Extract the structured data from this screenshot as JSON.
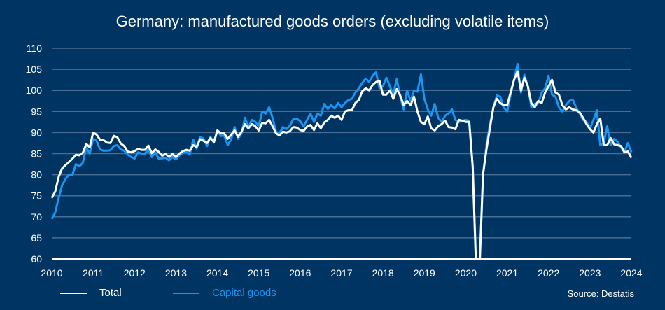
{
  "chart_data": {
    "type": "line",
    "title": "Germany: manufactured goods orders (excluding volatile items)",
    "xlabel": "",
    "ylabel": "",
    "ylim": [
      60,
      110
    ],
    "yticks": [
      "60",
      "65",
      "70",
      "75",
      "80",
      "85",
      "90",
      "95",
      "100",
      "105",
      "110"
    ],
    "xlim": [
      2010,
      2024
    ],
    "xticks": [
      "2010",
      "2011",
      "2012",
      "2013",
      "2014",
      "2015",
      "2016",
      "2017",
      "2018",
      "2019",
      "2020",
      "2021",
      "2022",
      "2023",
      "2024"
    ],
    "grid": true,
    "legend_position": "bottom-left",
    "x_start": "2010-01",
    "x_frequency": "monthly",
    "series": [
      {
        "name": "Total",
        "color": "#ffffff",
        "values": [
          74.5,
          76,
          79.5,
          81.5,
          82.3,
          83,
          83.8,
          84.7,
          84.6,
          85.2,
          87.3,
          86.5,
          90,
          89.5,
          88.3,
          88.2,
          87.6,
          87.5,
          89.2,
          88.9,
          87.4,
          86.8,
          85.5,
          85.3,
          85.6,
          86.1,
          85.9,
          85.9,
          86.9,
          85.1,
          86,
          85.4,
          84.5,
          84.9,
          84.2,
          84.9,
          84.2,
          85,
          85.6,
          85.9,
          85.7,
          87,
          86.6,
          88.4,
          88,
          87.5,
          88.7,
          87.7,
          90.5,
          89.8,
          89.8,
          88.5,
          89.5,
          90.5,
          89,
          90.2,
          92,
          91,
          92,
          91.5,
          90.5,
          92.3,
          92.2,
          93,
          91.5,
          89.8,
          89.3,
          90.2,
          90,
          90.3,
          91.3,
          91.2,
          90.6,
          90.4,
          91.4,
          91.8,
          90.6,
          92.2,
          91,
          92.4,
          93,
          94,
          93.5,
          94,
          93,
          95,
          95.3,
          95.3,
          97,
          97.7,
          99.8,
          100.5,
          100,
          101.3,
          102,
          102.3,
          99,
          99,
          100,
          98,
          100.3,
          98.8,
          96.5,
          97.5,
          96.5,
          98.5,
          95,
          92.5,
          92,
          93.8,
          91,
          90.5,
          91.5,
          92,
          92.8,
          91.3,
          91.2,
          90.8,
          93,
          92.8,
          92.5,
          92.5,
          82,
          58,
          58,
          80,
          86,
          91,
          96,
          98,
          97,
          96.5,
          96.5,
          99.5,
          102.5,
          104.5,
          100,
          103,
          101,
          97,
          96,
          97.5,
          97,
          99.5,
          101,
          102.5,
          99.5,
          99,
          96.5,
          95.5,
          96,
          95.5,
          95.3,
          94.8,
          93.5,
          92,
          90.8,
          90,
          92,
          93.3,
          87,
          87,
          88.7,
          87.2,
          87,
          86.8,
          85.3,
          85.5,
          84
        ]
      },
      {
        "name": "Capital goods",
        "color": "#1c95f0",
        "values": [
          69.5,
          71,
          74.5,
          77.5,
          79,
          80,
          80,
          82.5,
          82,
          82.8,
          86.5,
          85,
          88.5,
          88,
          86,
          85.7,
          85.7,
          85.8,
          86.8,
          87,
          86,
          85.7,
          84.8,
          84.2,
          83.8,
          85.3,
          85,
          85,
          86,
          84.2,
          85.3,
          83.8,
          83.9,
          84,
          83.4,
          84.2,
          83.6,
          84.6,
          85.2,
          85.5,
          84.8,
          88.3,
          86.2,
          89,
          88.5,
          86.8,
          89,
          87.6,
          90.5,
          89.2,
          89.3,
          87,
          88.4,
          91.3,
          88.5,
          89.8,
          93.5,
          91.3,
          93,
          92.5,
          91.5,
          95,
          94.5,
          96,
          93.5,
          90.2,
          89.8,
          91.3,
          90.8,
          91.6,
          93.2,
          93.3,
          92.7,
          91.5,
          93,
          94.5,
          92.5,
          94.5,
          94,
          96.8,
          95.6,
          96.5,
          95.7,
          97,
          96,
          97,
          97.7,
          98,
          99.5,
          100.5,
          101.8,
          102.8,
          102,
          103.5,
          104.3,
          100.5,
          101,
          103,
          101,
          99,
          102.7,
          98.5,
          95.5,
          100,
          97.5,
          100,
          99.7,
          103.8,
          98,
          95.5,
          94,
          96.8,
          93.5,
          92.5,
          94,
          94.5,
          95.5,
          93,
          92.5,
          92.8,
          93,
          92.8,
          82,
          58,
          58,
          80,
          87,
          92,
          96,
          98.8,
          98.5,
          96,
          95,
          99,
          102.5,
          106.3,
          99.5,
          103.7,
          101,
          96,
          96.8,
          97,
          99.5,
          100.5,
          103.5,
          99,
          98.5,
          96,
          95,
          96.5,
          97.5,
          97.8,
          96,
          94.5,
          93,
          92.5,
          91,
          93,
          95.3,
          87,
          87.5,
          91.5,
          87,
          88.5,
          87.8,
          86.5,
          85.3,
          87.5,
          85.3
        ]
      }
    ],
    "annotations": [
      "Source: Destatis"
    ]
  },
  "legend": {
    "total_label": "Total",
    "capital_label": "Capital goods"
  },
  "source_label": "Source: Destatis"
}
